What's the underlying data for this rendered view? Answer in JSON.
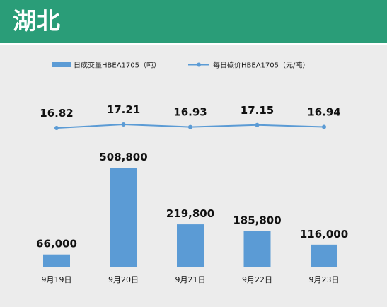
{
  "header": {
    "title": "湖北"
  },
  "chart_data": {
    "type": "bar",
    "categories": [
      "9月19日",
      "9月20日",
      "9月21日",
      "9月22日",
      "9月23日"
    ],
    "series": [
      {
        "name": "日成交量HBEA1705（吨）",
        "kind": "bar",
        "values": [
          66000,
          508800,
          219800,
          185800,
          116000
        ],
        "labels": [
          "66,000",
          "508,800",
          "219,800",
          "185,800",
          "116,000"
        ],
        "color": "#5b9bd5"
      },
      {
        "name": "每日碳价HBEA1705（元/吨）",
        "kind": "line",
        "values": [
          16.82,
          17.21,
          16.93,
          17.15,
          16.94
        ],
        "labels": [
          "16.82",
          "17.21",
          "16.93",
          "17.15",
          "16.94"
        ],
        "color": "#5b9bd5"
      }
    ],
    "legend_position": "top",
    "grid": false
  }
}
